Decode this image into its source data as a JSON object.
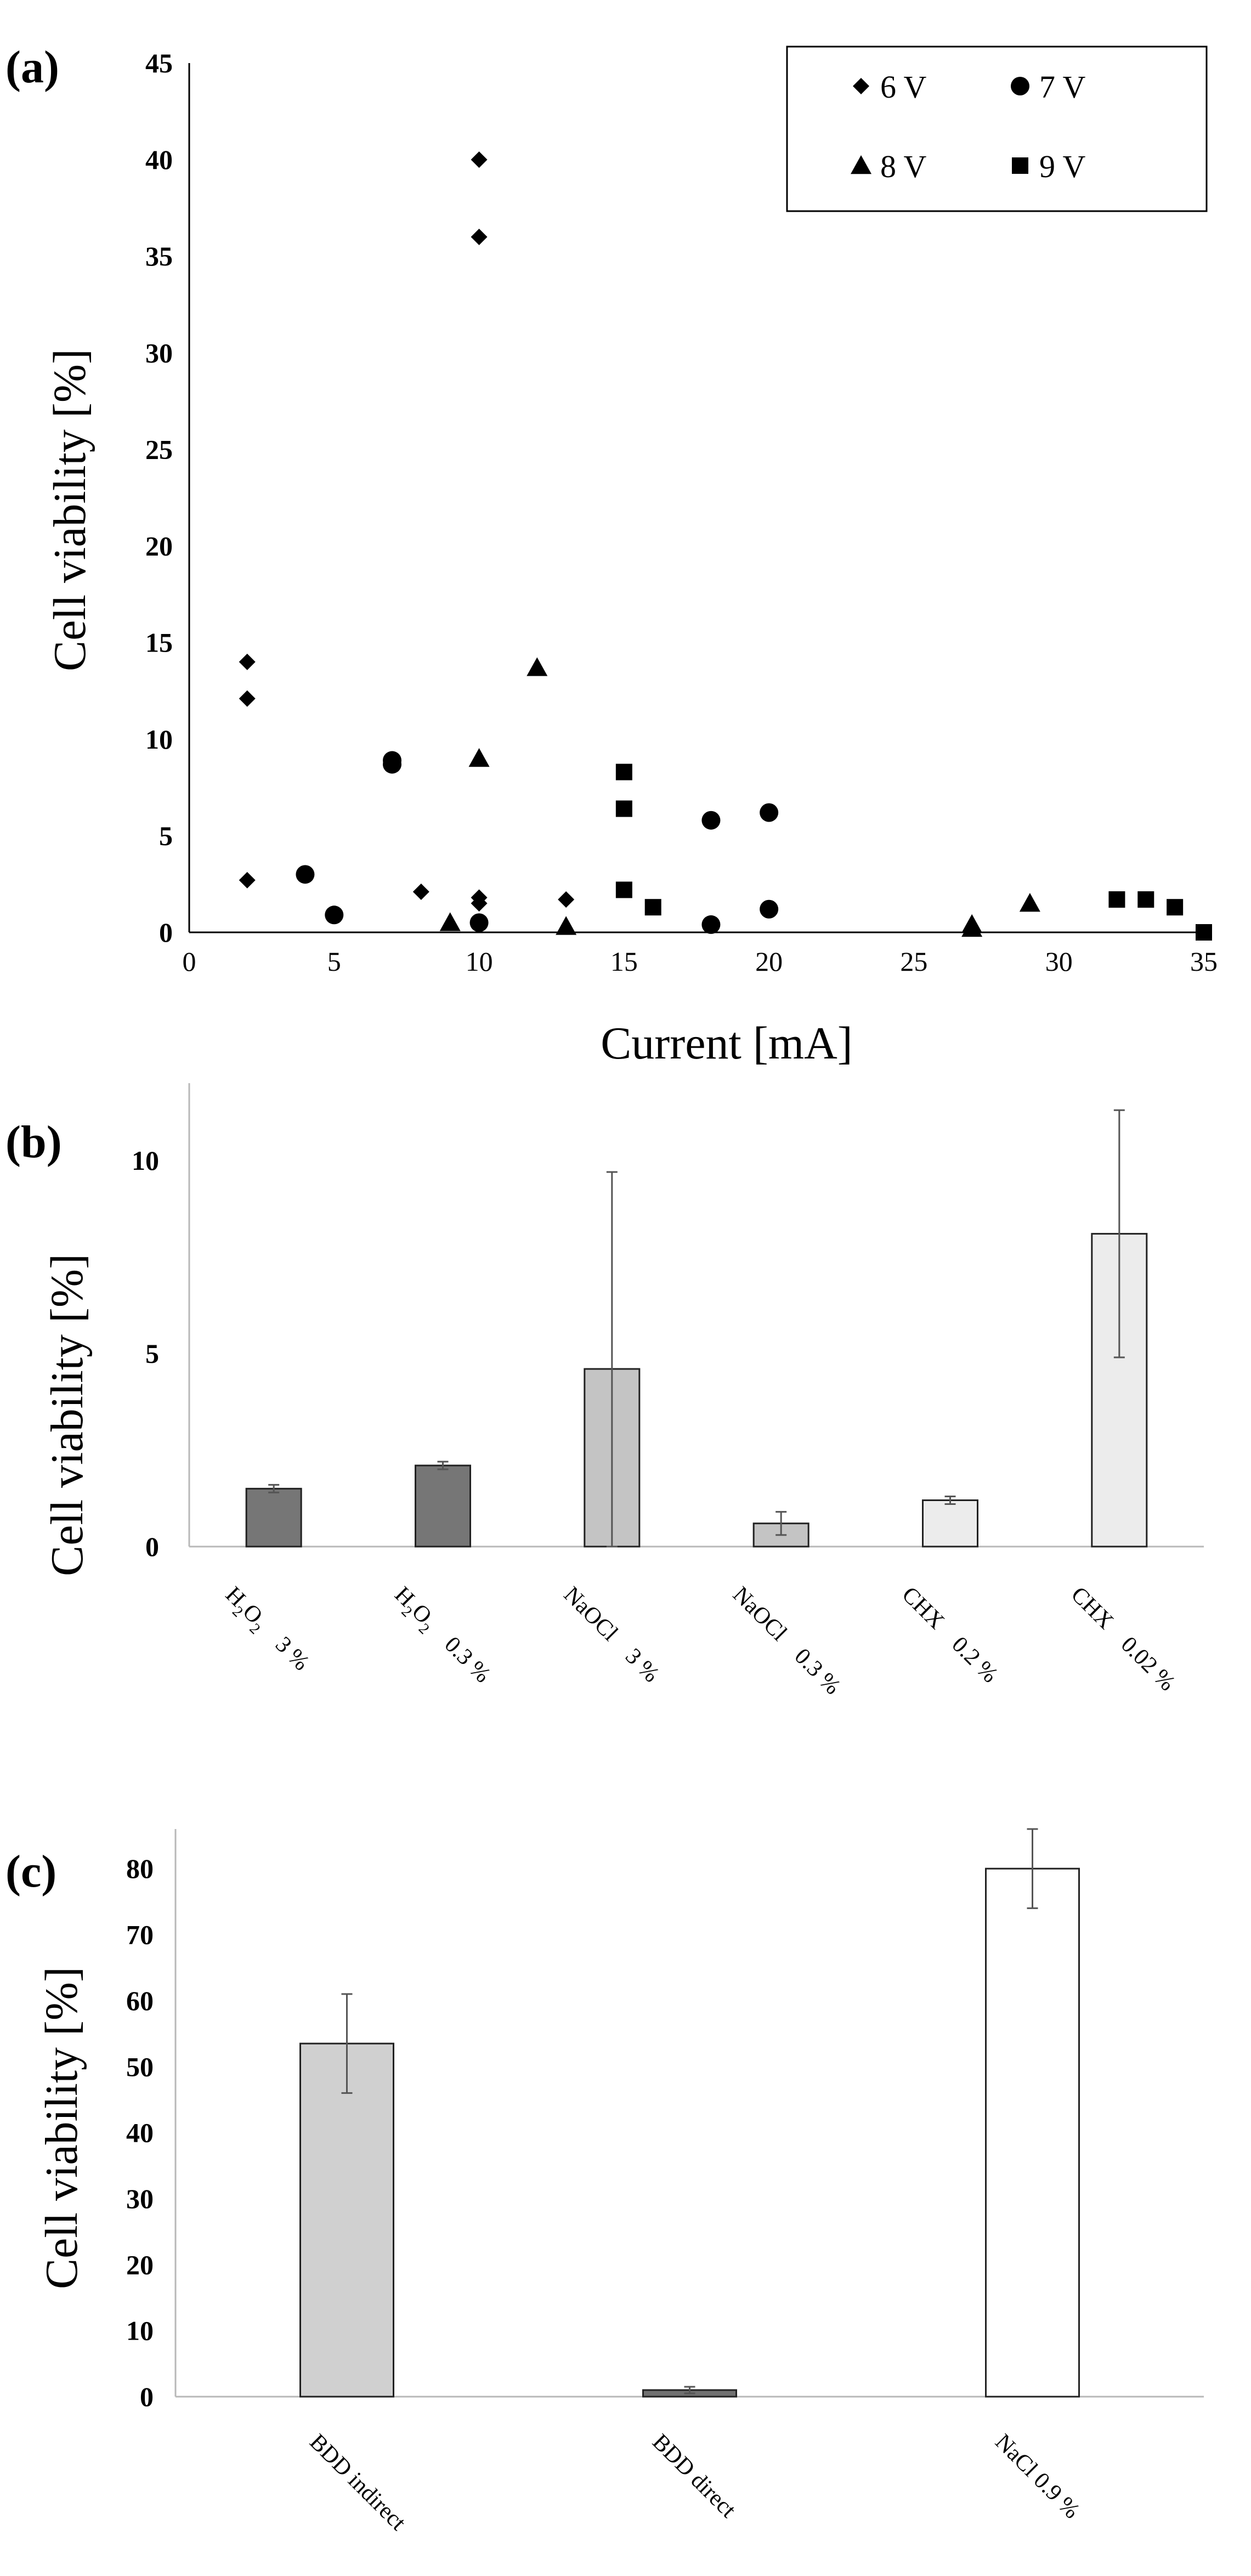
{
  "chart_data": [
    {
      "panel": "(a)",
      "type": "scatter",
      "xlabel": "Current [mA]",
      "ylabel": "Cell viability [%]",
      "xlim": [
        0,
        35
      ],
      "ylim": [
        0,
        45
      ],
      "xticks": [
        0,
        5,
        10,
        15,
        20,
        25,
        30,
        35
      ],
      "yticks": [
        0,
        5,
        10,
        15,
        20,
        25,
        30,
        35,
        40,
        45
      ],
      "legend_position": "top-right",
      "series": [
        {
          "name": "6 V",
          "marker": "diamond",
          "points": [
            [
              2,
              14
            ],
            [
              2,
              12.1
            ],
            [
              2,
              2.7
            ],
            [
              8,
              2.1
            ],
            [
              10,
              40
            ],
            [
              10,
              36
            ],
            [
              10,
              1.8
            ],
            [
              10,
              1.5
            ],
            [
              13,
              1.7
            ]
          ]
        },
        {
          "name": "7 V",
          "marker": "circle",
          "points": [
            [
              4,
              3
            ],
            [
              5,
              0.9
            ],
            [
              7,
              8.9
            ],
            [
              7,
              8.7
            ],
            [
              10,
              0.5
            ],
            [
              18,
              5.8
            ],
            [
              18,
              0.4
            ],
            [
              20,
              6.2
            ],
            [
              20,
              1.2
            ]
          ]
        },
        {
          "name": "8 V",
          "marker": "triangle",
          "points": [
            [
              9,
              0.5
            ],
            [
              10,
              9
            ],
            [
              12,
              13.7
            ],
            [
              13,
              0.3
            ],
            [
              27,
              0.4
            ],
            [
              27,
              0.2
            ],
            [
              29,
              1.5
            ]
          ]
        },
        {
          "name": "9 V",
          "marker": "square",
          "points": [
            [
              15,
              8.3
            ],
            [
              15,
              6.4
            ],
            [
              15,
              2.2
            ],
            [
              16,
              1.3
            ],
            [
              32,
              1.7
            ],
            [
              33,
              1.7
            ],
            [
              34,
              1.3
            ],
            [
              35,
              0
            ]
          ]
        }
      ]
    },
    {
      "panel": "(b)",
      "type": "bar",
      "ylabel": "Cell viability [%]",
      "ylim": [
        0,
        12
      ],
      "yticks": [
        0,
        5,
        10
      ],
      "categories": [
        {
          "main": "H",
          "sub": "2",
          "main2": "O",
          "sub2": "2",
          "conc": "3 %"
        },
        {
          "main": "H",
          "sub": "2",
          "main2": "O",
          "sub2": "2",
          "conc": "0.3 %"
        },
        {
          "main": "NaOCl",
          "sub": "",
          "main2": "",
          "sub2": "",
          "conc": "3 %"
        },
        {
          "main": "NaOCl",
          "sub": "",
          "main2": "",
          "sub2": "",
          "conc": "0.3 %"
        },
        {
          "main": "CHX",
          "sub": "",
          "main2": "",
          "sub2": "",
          "conc": "0.2 %"
        },
        {
          "main": "CHX",
          "sub": "",
          "main2": "",
          "sub2": "",
          "conc": "0.02 %"
        }
      ],
      "values": [
        1.5,
        2.1,
        4.6,
        0.6,
        1.2,
        8.1
      ],
      "errors": [
        0.1,
        0.1,
        5.1,
        0.3,
        0.1,
        3.2
      ],
      "colors": [
        "#767676",
        "#767676",
        "#c4c4c4",
        "#c4c4c4",
        "#ececec",
        "#ececec"
      ]
    },
    {
      "panel": "(c)",
      "type": "bar",
      "ylabel": "Cell viability [%]",
      "ylim": [
        0,
        86
      ],
      "yticks": [
        0,
        10,
        20,
        30,
        40,
        50,
        60,
        70,
        80
      ],
      "categories": [
        "BDD indirect",
        "BDD direct",
        "NaCl   0.9 %"
      ],
      "values": [
        53.5,
        1,
        80
      ],
      "errors": [
        7.5,
        0.5,
        6
      ],
      "colors": [
        "#d0d0d0",
        "#707070",
        "#ffffff"
      ]
    }
  ]
}
